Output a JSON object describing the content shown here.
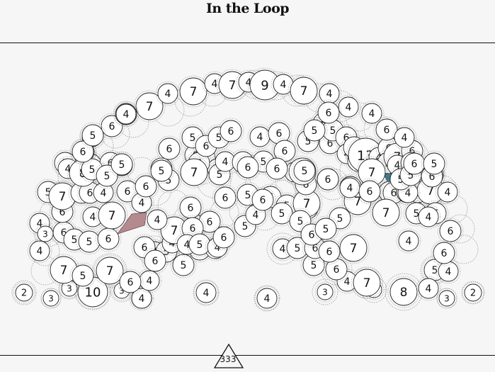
{
  "header": {
    "title": "In the Loop"
  },
  "footer": {
    "total_label": "333"
  },
  "colors": {
    "bubble_fill": "#ffffff",
    "bubble_stroke": "#222222",
    "ring_stroke": "#9a9a9a",
    "highlight_left": "#b58a8f",
    "highlight_right": "#2e6f8e",
    "rule": "#111111"
  },
  "bubble_numbers": [
    2,
    3,
    3,
    10,
    3,
    4,
    4,
    4,
    4,
    3,
    4,
    3,
    2,
    4,
    7,
    5,
    7,
    6,
    4,
    5,
    5,
    5,
    4,
    4,
    7,
    8,
    5,
    4,
    4,
    4,
    3,
    6,
    5,
    5,
    6,
    4,
    6,
    7,
    6,
    6,
    4,
    7,
    4,
    6,
    5,
    5,
    6,
    6,
    3,
    5,
    7,
    6,
    6,
    4,
    6,
    4,
    4,
    6,
    6,
    5,
    6,
    5,
    6,
    7,
    5,
    7,
    6,
    6,
    5,
    6,
    6,
    5,
    6,
    6,
    5,
    5,
    4,
    4,
    5,
    4,
    6,
    5,
    4,
    6,
    6,
    4,
    8,
    5,
    5,
    5,
    6,
    6,
    5,
    6,
    6,
    5,
    6,
    5,
    4,
    6,
    6,
    7,
    5,
    5,
    6,
    5,
    6,
    4,
    6,
    6,
    13,
    4,
    6,
    5,
    7,
    4,
    6,
    6,
    5,
    6,
    6,
    5,
    6,
    7,
    4,
    5,
    6,
    4,
    5,
    5,
    7,
    6,
    6,
    5,
    6,
    5,
    4,
    7,
    6,
    5,
    5,
    6,
    6,
    4,
    5,
    4,
    6,
    5,
    4,
    6,
    5,
    5,
    6,
    5,
    6,
    7,
    4,
    7,
    4,
    6,
    6,
    4,
    7,
    4,
    7,
    4,
    7,
    4,
    9,
    4,
    7,
    4,
    4,
    6,
    4,
    6,
    5,
    6,
    5,
    6,
    5,
    4,
    5,
    6,
    4
  ]
}
